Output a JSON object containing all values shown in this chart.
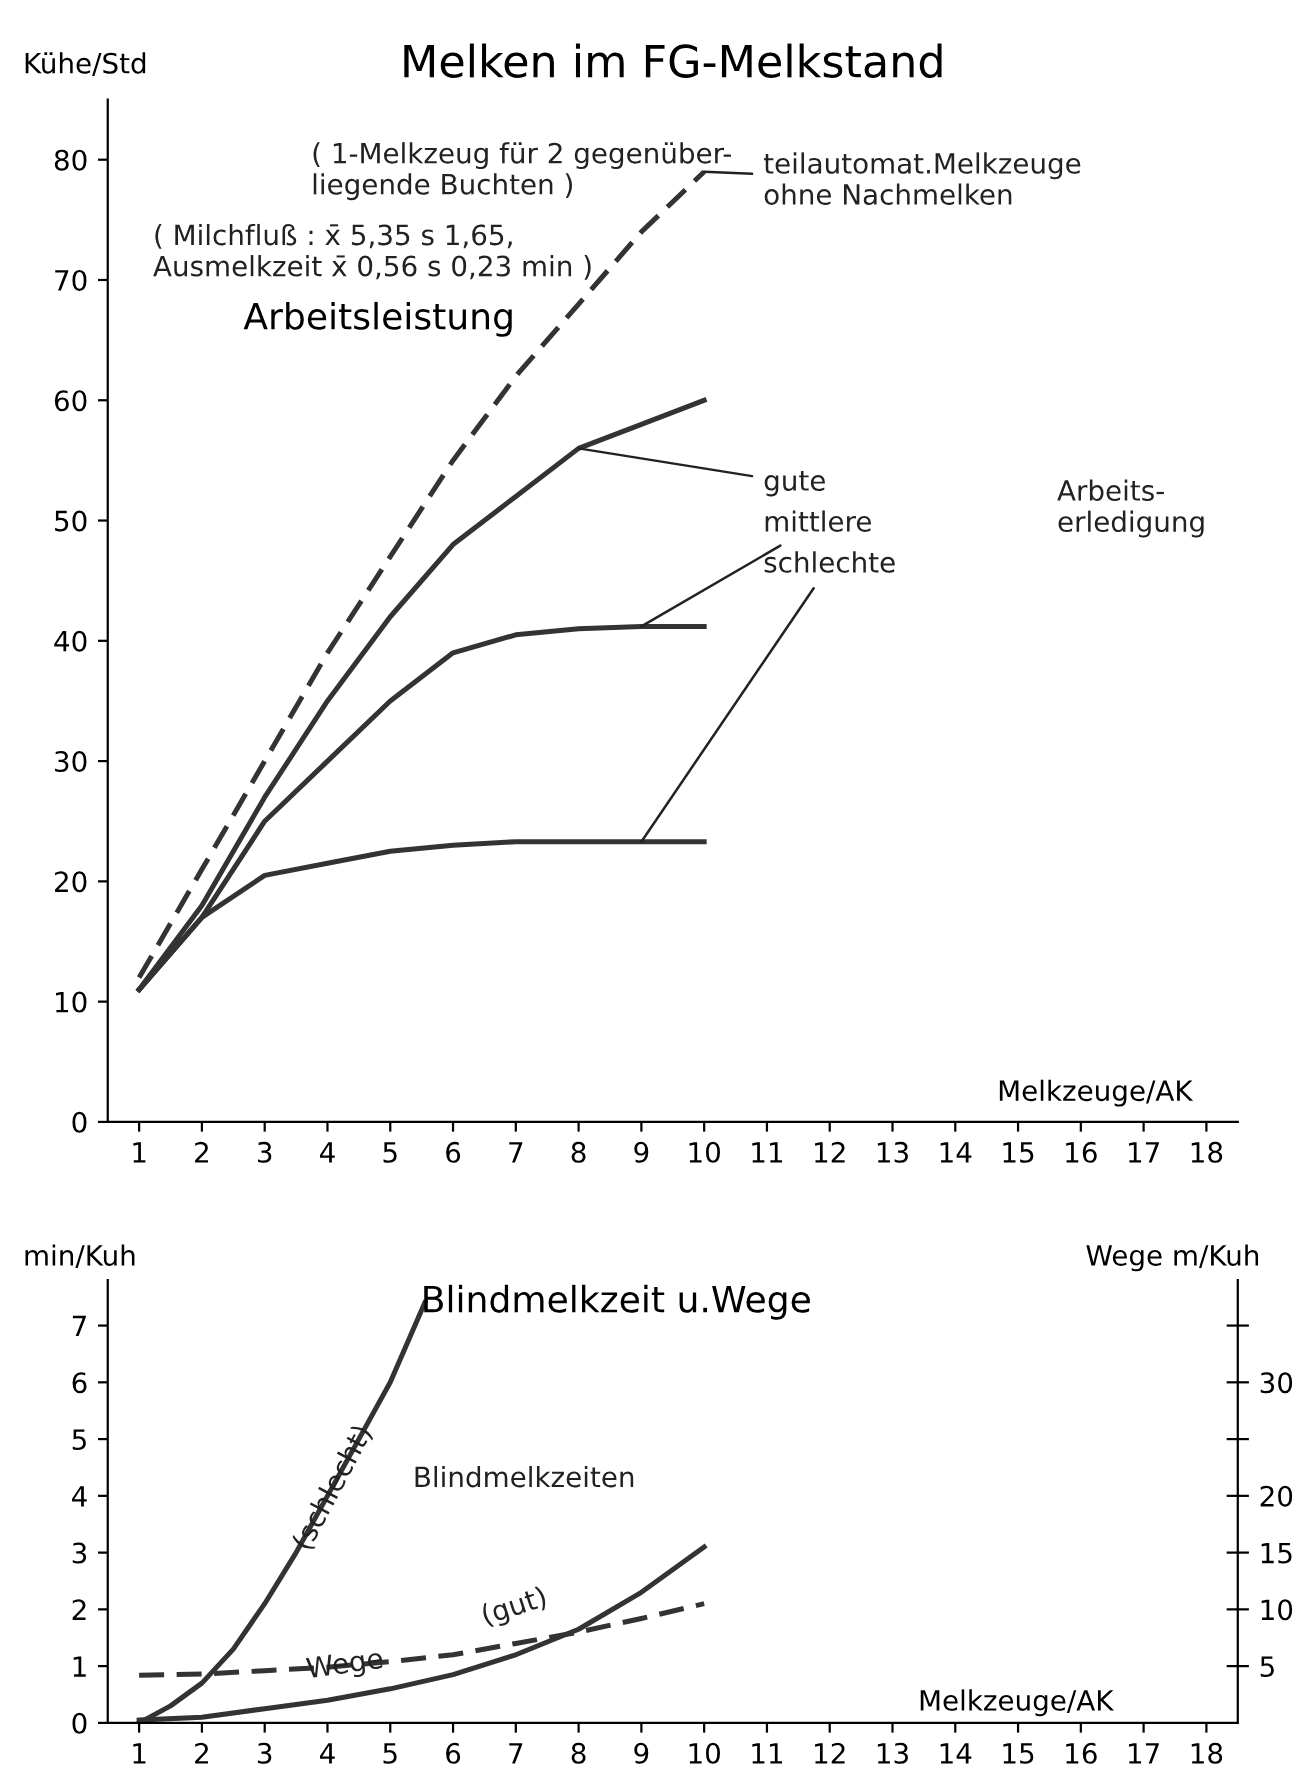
{
  "chart_data": [
    {
      "type": "line",
      "title": "Melken im FG-Melkstand",
      "subtitle": "Arbeitsleistung",
      "ylabel": "Kühe/Std",
      "xlabel": "Melkzeuge/AK",
      "x": [
        1,
        2,
        3,
        4,
        5,
        6,
        7,
        8,
        9,
        10
      ],
      "xlim": [
        0.5,
        18.5
      ],
      "xticks": [
        1,
        2,
        3,
        4,
        5,
        6,
        7,
        8,
        9,
        10,
        11,
        12,
        13,
        14,
        15,
        16,
        17,
        18
      ],
      "ylim": [
        0,
        85
      ],
      "yticks": [
        0,
        10,
        20,
        30,
        40,
        50,
        60,
        70,
        80
      ],
      "grid": false,
      "legend": false,
      "marker": "none",
      "annotations": [
        "( 1-Melkzeug für 2 gegenüber-\nliegende Buchten )",
        "( Milchfluß : x̄ 5,35 s 1,65,\nAusmelkzeit x̄ 0,56 s 0,23 min )",
        "Arbeits-\nerledigung"
      ],
      "series": [
        {
          "name": "teilautomat.Melkzeuge\nohne Nachmelken",
          "color": "#333333",
          "line_style": "dashed",
          "values": [
            12,
            21,
            30,
            39,
            47,
            55,
            62,
            68,
            74,
            79
          ]
        },
        {
          "name": "gute",
          "color": "#333333",
          "line_style": "solid",
          "values": [
            11,
            18,
            27,
            35,
            42,
            48,
            52,
            56,
            58,
            60
          ]
        },
        {
          "name": "mittlere",
          "color": "#333333",
          "line_style": "solid",
          "values": [
            11,
            17,
            25,
            30,
            35,
            39,
            40.5,
            41,
            41.2,
            41.2
          ]
        },
        {
          "name": "schlechte",
          "color": "#333333",
          "line_style": "solid",
          "values": [
            11,
            17,
            20.5,
            21.5,
            22.5,
            23,
            23.3,
            23.3,
            23.3,
            23.3
          ]
        }
      ]
    },
    {
      "type": "line",
      "title": "Blindmelkzeit u.Wege",
      "ylabel": "min/Kuh",
      "y2label": "Wege m/Kuh",
      "xlabel": "Melkzeuge/AK",
      "xlim": [
        0.5,
        18.5
      ],
      "xticks": [
        1,
        2,
        3,
        4,
        5,
        6,
        7,
        8,
        9,
        10,
        11,
        12,
        13,
        14,
        15,
        16,
        17,
        18
      ],
      "ylim": [
        0,
        7.8
      ],
      "yticks": [
        0,
        1,
        2,
        3,
        4,
        5,
        6,
        7
      ],
      "y2lim": [
        0,
        39
      ],
      "y2ticks": [
        5,
        10,
        15,
        20,
        {
          "value": 25,
          "label": null
        },
        30,
        {
          "value": 35,
          "label": null
        }
      ],
      "grid": false,
      "legend": false,
      "marker": "none",
      "annotations": [
        "Blindmelkzeiten"
      ],
      "series": [
        {
          "name": "(schlecht)",
          "color": "#333333",
          "line_style": "solid",
          "x": [
            1,
            1.5,
            2,
            2.5,
            3,
            3.5,
            4,
            4.5,
            5,
            5.55
          ],
          "values": [
            0,
            0.3,
            0.7,
            1.3,
            2.1,
            3.0,
            4.0,
            5.0,
            6.0,
            7.4
          ]
        },
        {
          "name": "(gut)",
          "color": "#333333",
          "line_style": "solid",
          "x": [
            1,
            2,
            3,
            4,
            5,
            6,
            7,
            8,
            9,
            10
          ],
          "values": [
            0.05,
            0.1,
            0.25,
            0.4,
            0.6,
            0.85,
            1.2,
            1.65,
            2.3,
            3.1
          ]
        },
        {
          "name": "Wege",
          "color": "#333333",
          "line_style": "dashed",
          "axis": "y2",
          "x": [
            1,
            2,
            3,
            4,
            5,
            6,
            7,
            8,
            9,
            10
          ],
          "values": [
            4.2,
            4.3,
            4.6,
            4.9,
            5.4,
            6.0,
            7.0,
            8.0,
            9.2,
            10.5
          ]
        }
      ]
    }
  ]
}
